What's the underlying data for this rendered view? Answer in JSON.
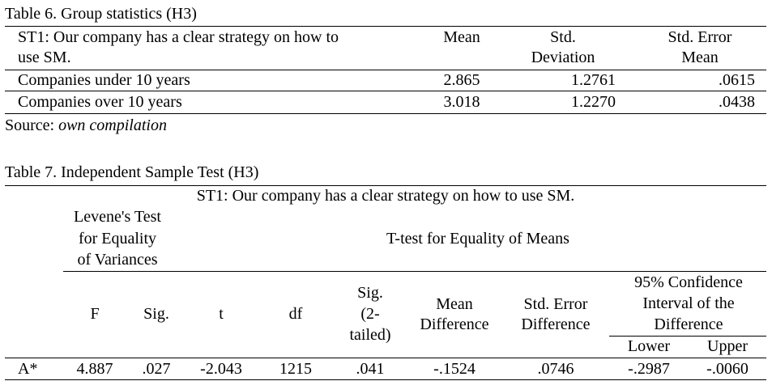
{
  "table6": {
    "caption": "Table 6. Group statistics (H3)",
    "header": {
      "label_line1": "ST1: Our company has a clear strategy on how to",
      "label_line2": "use SM.",
      "mean": "Mean",
      "std_dev_line1": "Std.",
      "std_dev_line2": "Deviation",
      "std_err_line1": "Std. Error",
      "std_err_line2": "Mean"
    },
    "rows": [
      {
        "label": "Companies under 10 years",
        "mean": "2.865",
        "std_dev": "1.2761",
        "std_err": ".0615"
      },
      {
        "label": "Companies over 10 years",
        "mean": "3.018",
        "std_dev": "1.2270",
        "std_err": ".0438"
      }
    ],
    "source_prefix": "Source: ",
    "source_text": "own compilation"
  },
  "table7": {
    "caption": "Table 7. Independent Sample Test (H3)",
    "question": "ST1: Our company has a clear strategy on how to use SM.",
    "levene_line1": "Levene's Test",
    "levene_line2": "for Equality",
    "levene_line3": "of Variances",
    "ttest": "T-test for Equality of Means",
    "col_f": "F",
    "col_sig": "Sig.",
    "col_t": "t",
    "col_df": "df",
    "col_sig2_line1": "Sig.",
    "col_sig2_line2": "(2-",
    "col_sig2_line3": "tailed)",
    "col_meandiff_line1": "Mean",
    "col_meandiff_line2": "Difference",
    "col_stderr_line1": "Std. Error",
    "col_stderr_line2": "Difference",
    "ci_line1": "95% Confidence",
    "ci_line2": "Interval of the",
    "ci_line3": "Difference",
    "col_lower": "Lower",
    "col_upper": "Upper",
    "row": {
      "label": "A*",
      "f": "4.887",
      "sig": ".027",
      "t": "-2.043",
      "df": "1215",
      "sig2": ".041",
      "mean_diff": "-.1524",
      "std_err_diff": ".0746",
      "lower": "-.2987",
      "upper": "-.0060"
    }
  }
}
